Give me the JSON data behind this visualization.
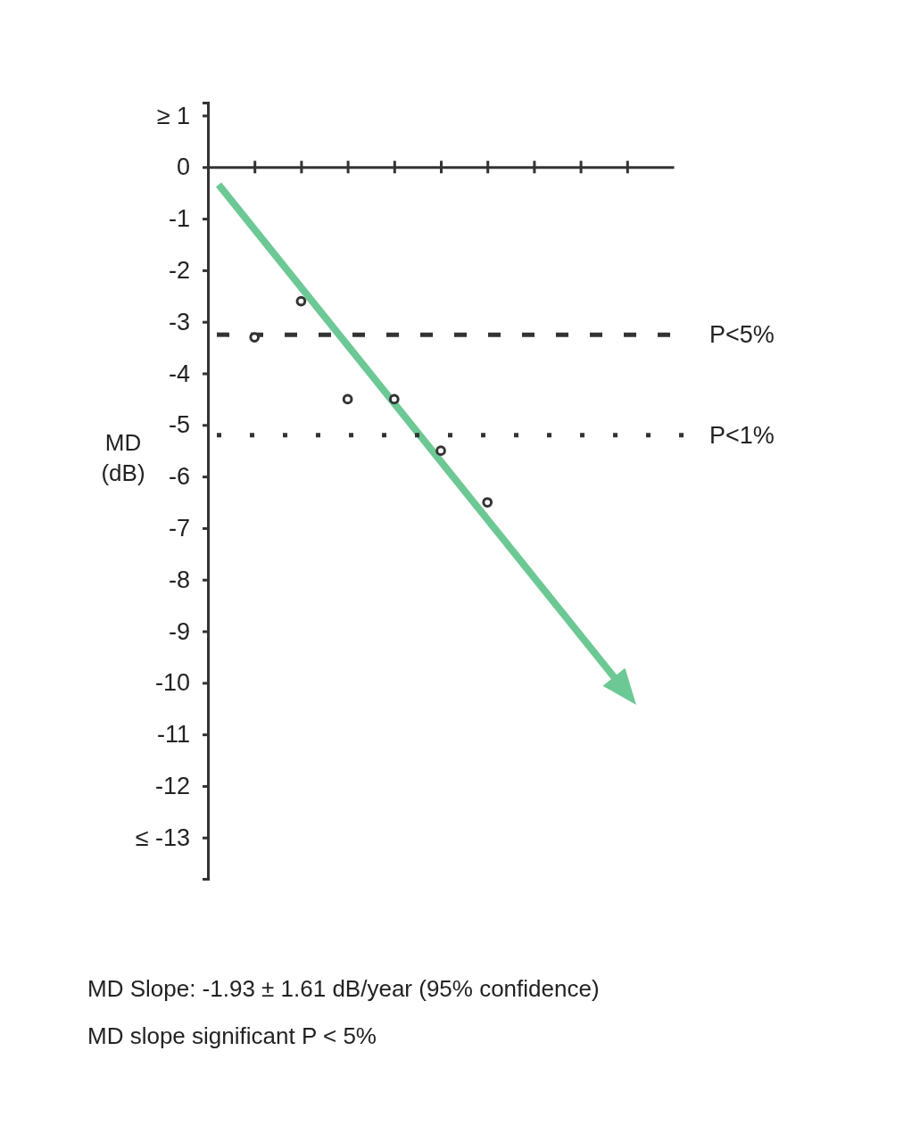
{
  "chart_data": {
    "type": "scatter",
    "ylabel": "MD (dB)",
    "categories": [
      null,
      null,
      null,
      null,
      null,
      null,
      null,
      null,
      null
    ],
    "values": [
      -3.3,
      -2.6,
      -4.5,
      -4.5,
      -5.5,
      -6.5,
      null,
      null,
      null
    ],
    "color": "#333333",
    "marker": "circle",
    "ylim": [
      -13.8,
      1.25
    ],
    "yticks": [
      {
        "value": 1,
        "label": "≥ 1"
      },
      0,
      -1,
      -2,
      -3,
      -4,
      -5,
      -6,
      -7,
      -8,
      -9,
      -10,
      -11,
      -12,
      {
        "value": -13,
        "label": "≤ -13"
      }
    ],
    "tick_labels": "y",
    "ref_lines": [
      {
        "axis": "y",
        "value": -3.25,
        "label": "P<5%",
        "line_style": "dashed",
        "color": "#333333"
      },
      {
        "axis": "y",
        "value": -5.2,
        "label": "P<1%",
        "line_style": "dotted",
        "color": "#333333"
      }
    ],
    "annotations": [
      "MD Slope: -1.93 ± 1.61 dB/year (95% confidence)",
      "MD slope significant  P < 5%"
    ]
  }
}
